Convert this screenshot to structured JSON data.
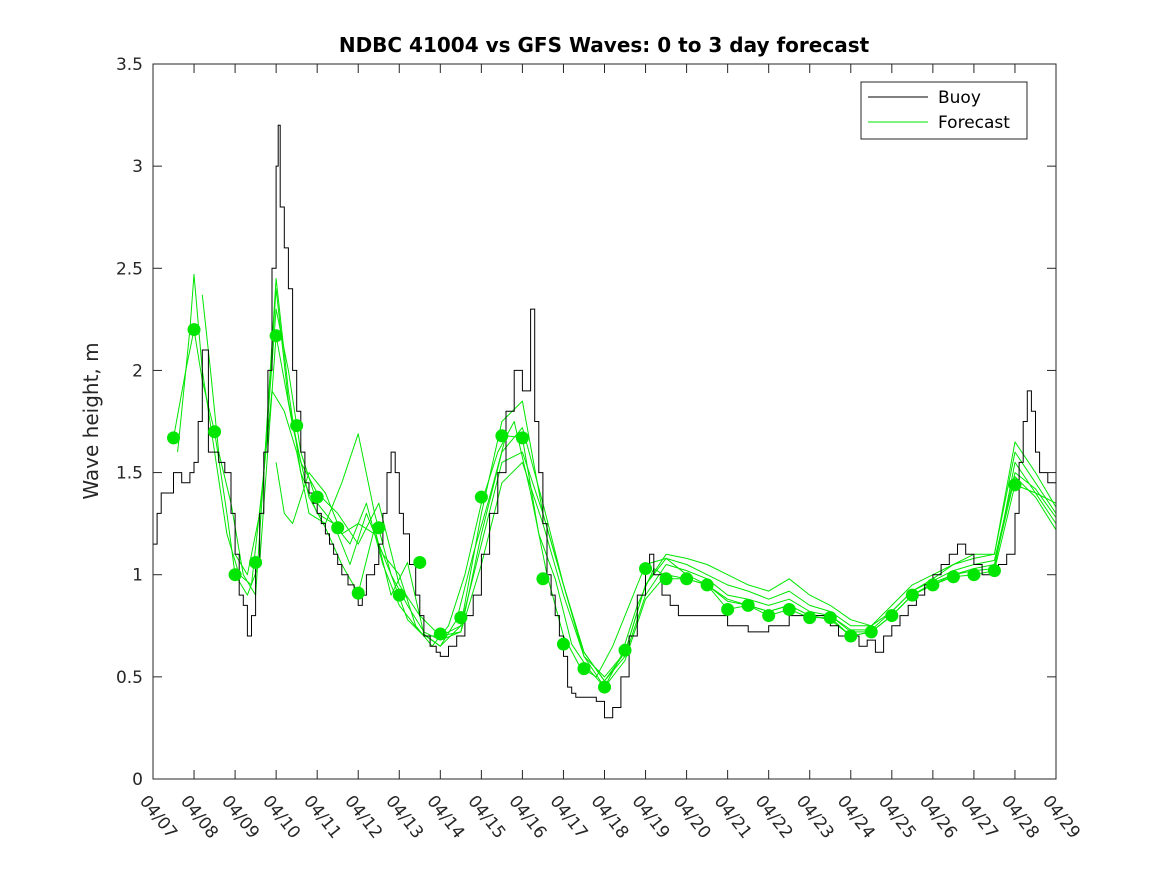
{
  "chart_data": {
    "type": "line",
    "title": "NDBC 41004 vs GFS Waves: 0 to 3 day forecast",
    "xlabel": "",
    "ylabel": "Wave height, m",
    "xlim": [
      0,
      22
    ],
    "ylim": [
      0,
      3.5
    ],
    "grid": false,
    "legend_position": "top-right",
    "x_tick_labels": [
      "04/07",
      "04/08",
      "04/09",
      "04/10",
      "04/11",
      "04/12",
      "04/13",
      "04/14",
      "04/15",
      "04/16",
      "04/17",
      "04/18",
      "04/19",
      "04/20",
      "04/21",
      "04/22",
      "04/23",
      "04/24",
      "04/25",
      "04/26",
      "04/27",
      "04/28",
      "04/29"
    ],
    "y_ticks": [
      0,
      0.5,
      1,
      1.5,
      2,
      2.5,
      3,
      3.5
    ],
    "y_tick_labels": [
      "0",
      "0.5",
      "1",
      "1.5",
      "2",
      "2.5",
      "3",
      "3.5"
    ],
    "colors": {
      "buoy": "#000000",
      "forecast": "#00e600"
    },
    "buoy": {
      "name": "Buoy",
      "x": [
        0.0,
        0.1,
        0.2,
        0.3,
        0.5,
        0.7,
        0.9,
        1.0,
        1.1,
        1.2,
        1.35,
        1.5,
        1.6,
        1.75,
        1.9,
        2.0,
        2.1,
        2.2,
        2.3,
        2.4,
        2.5,
        2.6,
        2.7,
        2.8,
        2.9,
        3.0,
        3.05,
        3.1,
        3.2,
        3.3,
        3.4,
        3.5,
        3.6,
        3.7,
        3.8,
        3.9,
        4.0,
        4.1,
        4.2,
        4.3,
        4.4,
        4.5,
        4.6,
        4.75,
        4.9,
        5.0,
        5.1,
        5.2,
        5.3,
        5.4,
        5.5,
        5.6,
        5.7,
        5.8,
        5.9,
        6.0,
        6.1,
        6.25,
        6.4,
        6.5,
        6.6,
        6.75,
        6.9,
        7.0,
        7.2,
        7.4,
        7.6,
        7.8,
        8.0,
        8.2,
        8.4,
        8.6,
        8.8,
        9.0,
        9.2,
        9.3,
        9.4,
        9.5,
        9.6,
        9.7,
        9.8,
        9.9,
        10.0,
        10.1,
        10.2,
        10.3,
        10.4,
        10.6,
        10.8,
        11.0,
        11.2,
        11.4,
        11.6,
        11.8,
        12.0,
        12.1,
        12.2,
        12.4,
        12.6,
        12.8,
        13.0,
        13.5,
        14.0,
        14.5,
        15.0,
        15.5,
        16.0,
        16.5,
        16.7,
        16.9,
        17.0,
        17.2,
        17.4,
        17.6,
        17.8,
        18.0,
        18.2,
        18.4,
        18.6,
        18.8,
        19.0,
        19.2,
        19.4,
        19.6,
        19.8,
        20.0,
        20.2,
        20.4,
        20.6,
        20.8,
        21.0,
        21.1,
        21.2,
        21.3,
        21.4,
        21.5,
        21.6,
        21.8,
        22.0
      ],
      "y": [
        1.15,
        1.3,
        1.4,
        1.4,
        1.5,
        1.45,
        1.5,
        1.55,
        1.75,
        2.1,
        1.6,
        1.6,
        1.55,
        1.5,
        1.3,
        1.1,
        0.9,
        0.85,
        0.7,
        0.8,
        1.05,
        1.3,
        1.6,
        2.0,
        2.5,
        3.0,
        3.2,
        2.8,
        2.6,
        2.4,
        2.0,
        1.8,
        1.6,
        1.45,
        1.4,
        1.35,
        1.3,
        1.25,
        1.2,
        1.15,
        1.1,
        1.05,
        1.0,
        0.95,
        0.9,
        0.85,
        0.9,
        1.0,
        1.0,
        1.05,
        1.15,
        1.3,
        1.5,
        1.6,
        1.5,
        1.3,
        1.2,
        1.05,
        0.9,
        0.8,
        0.7,
        0.65,
        0.62,
        0.6,
        0.65,
        0.7,
        0.8,
        0.9,
        1.1,
        1.3,
        1.5,
        1.8,
        2.0,
        1.9,
        2.3,
        1.75,
        1.5,
        1.25,
        1.0,
        0.9,
        0.8,
        0.7,
        0.6,
        0.45,
        0.42,
        0.4,
        0.4,
        0.4,
        0.38,
        0.3,
        0.35,
        0.5,
        0.7,
        0.9,
        1.05,
        1.1,
        1.0,
        0.9,
        0.85,
        0.8,
        0.8,
        0.8,
        0.75,
        0.72,
        0.75,
        0.8,
        0.8,
        0.75,
        0.7,
        0.72,
        0.7,
        0.65,
        0.68,
        0.62,
        0.7,
        0.75,
        0.8,
        0.85,
        0.9,
        0.95,
        1.0,
        1.05,
        1.1,
        1.15,
        1.1,
        1.05,
        1.0,
        1.0,
        1.05,
        1.1,
        1.3,
        1.55,
        1.75,
        1.9,
        1.8,
        1.6,
        1.5,
        1.45,
        1.4
      ]
    },
    "forecast_lines": [
      {
        "name": "Forecast",
        "x": [
          0.5,
          0.8,
          1.0,
          1.2,
          1.5,
          1.8,
          2.0,
          2.3,
          2.6,
          3.0,
          3.4,
          3.8,
          4.2,
          4.6,
          5.0,
          5.4,
          5.8,
          6.2,
          6.6,
          7.0,
          7.4,
          7.8,
          8.2,
          8.6,
          9.0,
          9.4,
          9.8,
          10.2,
          10.6,
          11.0,
          11.4,
          11.8,
          12.2,
          12.6,
          13.0,
          13.5,
          14.0,
          14.5,
          15.0,
          15.5,
          16.0,
          16.5,
          17.0,
          17.5,
          18.0,
          18.5,
          19.0,
          19.5,
          20.0,
          20.5,
          21.0,
          21.5,
          22.0
        ],
        "y": [
          1.67,
          2.0,
          2.2,
          1.95,
          1.7,
          1.3,
          1.0,
          0.9,
          1.06,
          2.17,
          1.73,
          1.38,
          1.23,
          1.05,
          0.91,
          1.23,
          0.9,
          1.06,
          0.71,
          0.65,
          0.78,
          1.1,
          1.38,
          1.68,
          1.67,
          1.2,
          0.98,
          0.66,
          0.54,
          0.45,
          0.6,
          0.85,
          1.03,
          0.98,
          0.98,
          0.95,
          0.83,
          0.85,
          0.8,
          0.83,
          0.79,
          0.79,
          0.7,
          0.72,
          0.8,
          0.9,
          0.95,
          0.99,
          1.0,
          1.02,
          1.44,
          1.4,
          1.35
        ]
      },
      {
        "name": "",
        "x": [
          0.6,
          0.9,
          1.0,
          1.2,
          1.5,
          1.8,
          2.1,
          2.4,
          2.7,
          3.0,
          3.3,
          3.6,
          4.0,
          4.4,
          4.8,
          5.2,
          5.6,
          6.0,
          6.4,
          6.8,
          7.2,
          7.6,
          8.0,
          8.4,
          8.8,
          9.2,
          9.6,
          10.0,
          10.4,
          10.8,
          11.2,
          11.6,
          12.0,
          12.5,
          13.0,
          13.5,
          14.0,
          14.5,
          15.0,
          15.5,
          16.0,
          16.5,
          17.0,
          17.5,
          18.0,
          18.5,
          19.0,
          19.5,
          20.0,
          20.5,
          21.0,
          21.5,
          22.0
        ],
        "y": [
          1.6,
          2.2,
          2.47,
          2.0,
          1.6,
          1.2,
          1.0,
          0.95,
          1.5,
          2.45,
          1.9,
          1.5,
          1.3,
          1.25,
          1.05,
          1.3,
          1.1,
          1.0,
          0.75,
          0.65,
          0.75,
          1.0,
          1.35,
          1.6,
          1.75,
          1.4,
          1.0,
          0.7,
          0.55,
          0.5,
          0.65,
          0.85,
          1.05,
          1.08,
          1.05,
          1.0,
          0.95,
          0.92,
          0.88,
          0.92,
          0.85,
          0.82,
          0.75,
          0.75,
          0.82,
          0.92,
          0.98,
          1.05,
          1.1,
          1.1,
          1.6,
          1.45,
          1.3
        ]
      },
      {
        "name": "",
        "x": [
          1.2,
          1.4,
          1.6,
          1.9,
          2.2,
          2.5,
          2.8,
          3.0,
          3.3,
          3.6,
          4.0,
          4.5,
          5.0,
          5.5,
          6.0,
          6.5,
          7.0,
          7.5,
          8.0,
          8.5,
          9.0,
          9.5,
          10.0,
          10.5,
          11.0,
          11.5,
          12.0,
          12.5,
          13.0,
          13.5,
          14.0,
          14.5,
          15.0,
          15.5,
          16.0,
          16.5,
          17.0,
          17.5,
          18.0,
          18.5,
          19.0,
          19.5,
          20.0,
          20.5,
          21.0,
          21.5,
          22.0
        ],
        "y": [
          2.37,
          2.0,
          1.6,
          1.35,
          1.0,
          0.9,
          1.8,
          2.4,
          1.85,
          1.55,
          1.4,
          1.3,
          1.15,
          1.35,
          0.95,
          0.8,
          0.7,
          0.75,
          1.3,
          1.75,
          1.85,
          1.3,
          0.95,
          0.6,
          0.5,
          0.62,
          0.95,
          1.1,
          1.08,
          1.05,
          1.0,
          0.95,
          0.92,
          0.98,
          0.9,
          0.85,
          0.78,
          0.75,
          0.85,
          0.95,
          1.0,
          1.05,
          1.08,
          1.1,
          1.65,
          1.5,
          1.33
        ]
      },
      {
        "name": "",
        "x": [
          2.0,
          2.3,
          2.6,
          2.9,
          3.2,
          3.5,
          3.8,
          4.2,
          4.6,
          5.0,
          5.4,
          5.8,
          6.2,
          6.6,
          7.0,
          7.5,
          8.0,
          8.5,
          9.0,
          9.5,
          10.0,
          10.5,
          11.0,
          11.5,
          12.0,
          12.5,
          13.0,
          13.5,
          14.0,
          14.5,
          15.0,
          15.5,
          16.0,
          16.5,
          17.0,
          17.5,
          18.0,
          18.5,
          19.0,
          19.5,
          20.0,
          20.5,
          21.0,
          21.5,
          22.0
        ],
        "y": [
          1.1,
          1.0,
          1.3,
          1.9,
          1.8,
          1.6,
          1.3,
          1.25,
          1.45,
          1.69,
          1.3,
          1.0,
          0.78,
          0.7,
          0.7,
          0.72,
          1.2,
          1.6,
          1.72,
          1.35,
          0.95,
          0.62,
          0.48,
          0.62,
          0.95,
          1.08,
          1.0,
          0.95,
          0.88,
          0.85,
          0.82,
          0.85,
          0.8,
          0.8,
          0.72,
          0.72,
          0.8,
          0.9,
          0.96,
          1.0,
          1.02,
          1.03,
          1.55,
          1.4,
          1.25
        ]
      },
      {
        "name": "",
        "x": [
          2.7,
          3.0,
          3.3,
          3.6,
          4.0,
          4.4,
          4.8,
          5.2,
          5.6,
          6.0,
          6.5,
          7.0,
          7.5,
          8.0,
          8.5,
          9.0,
          9.5,
          10.0,
          10.5,
          11.0,
          11.5,
          12.0,
          12.5,
          13.0,
          13.5,
          14.0,
          14.5,
          15.0,
          15.5,
          16.0,
          16.5,
          17.0,
          17.5,
          18.0,
          18.5,
          19.0,
          19.5,
          20.0,
          20.5,
          21.0,
          21.5,
          22.0
        ],
        "y": [
          1.5,
          2.3,
          2.0,
          1.6,
          1.35,
          1.25,
          1.15,
          1.35,
          1.05,
          0.85,
          0.72,
          0.65,
          0.75,
          1.15,
          1.55,
          1.6,
          1.3,
          0.95,
          0.62,
          0.48,
          0.6,
          0.9,
          1.05,
          1.02,
          0.98,
          0.9,
          0.88,
          0.85,
          0.88,
          0.82,
          0.8,
          0.73,
          0.73,
          0.82,
          0.92,
          0.97,
          1.02,
          1.05,
          1.07,
          1.5,
          1.42,
          1.28
        ]
      },
      {
        "name": "",
        "x": [
          3.0,
          3.2,
          3.4,
          3.8,
          4.2,
          4.6,
          5.0,
          5.4,
          5.8,
          6.2,
          6.6,
          7.0,
          7.5,
          8.0,
          8.5,
          9.0,
          9.5,
          10.0,
          10.5,
          11.0,
          11.5,
          12.0,
          12.5,
          13.0,
          13.5,
          14.0,
          14.5,
          15.0,
          15.5,
          16.0,
          16.5,
          17.0,
          17.5,
          18.0,
          18.5,
          19.0,
          19.5,
          20.0,
          20.5,
          21.0,
          21.5,
          22.0
        ],
        "y": [
          1.55,
          1.3,
          1.25,
          1.5,
          1.4,
          1.2,
          1.25,
          1.2,
          1.0,
          0.85,
          0.72,
          0.68,
          0.72,
          1.05,
          1.45,
          1.55,
          1.25,
          0.9,
          0.6,
          0.45,
          0.58,
          0.88,
          1.0,
          0.98,
          0.95,
          0.87,
          0.85,
          0.82,
          0.85,
          0.8,
          0.78,
          0.7,
          0.72,
          0.8,
          0.9,
          0.95,
          1.0,
          1.03,
          1.05,
          1.48,
          1.38,
          1.22
        ]
      }
    ],
    "forecast_points": {
      "x": [
        0.5,
        1.0,
        1.5,
        2.0,
        2.5,
        3.0,
        3.5,
        4.0,
        4.5,
        5.0,
        5.5,
        6.0,
        6.5,
        7.0,
        7.5,
        8.0,
        8.5,
        9.0,
        9.5,
        10.0,
        10.5,
        11.0,
        11.5,
        12.0,
        12.5,
        13.0,
        13.5,
        14.0,
        14.5,
        15.0,
        15.5,
        16.0,
        16.5,
        17.0,
        17.5,
        18.0,
        18.5,
        19.0,
        19.5,
        20.0,
        20.5,
        21.0
      ],
      "y": [
        1.67,
        2.2,
        1.7,
        1.0,
        1.06,
        2.17,
        1.73,
        1.38,
        1.23,
        0.91,
        1.23,
        0.9,
        1.06,
        0.71,
        0.79,
        1.38,
        1.68,
        1.67,
        0.98,
        0.66,
        0.54,
        0.45,
        0.63,
        1.03,
        0.98,
        0.98,
        0.95,
        0.83,
        0.85,
        0.8,
        0.83,
        0.79,
        0.79,
        0.7,
        0.72,
        0.8,
        0.9,
        0.95,
        0.99,
        1.0,
        1.02,
        1.44
      ]
    },
    "legend": [
      {
        "label": "Buoy",
        "color": "#000000"
      },
      {
        "label": "Forecast",
        "color": "#00e600"
      }
    ]
  }
}
